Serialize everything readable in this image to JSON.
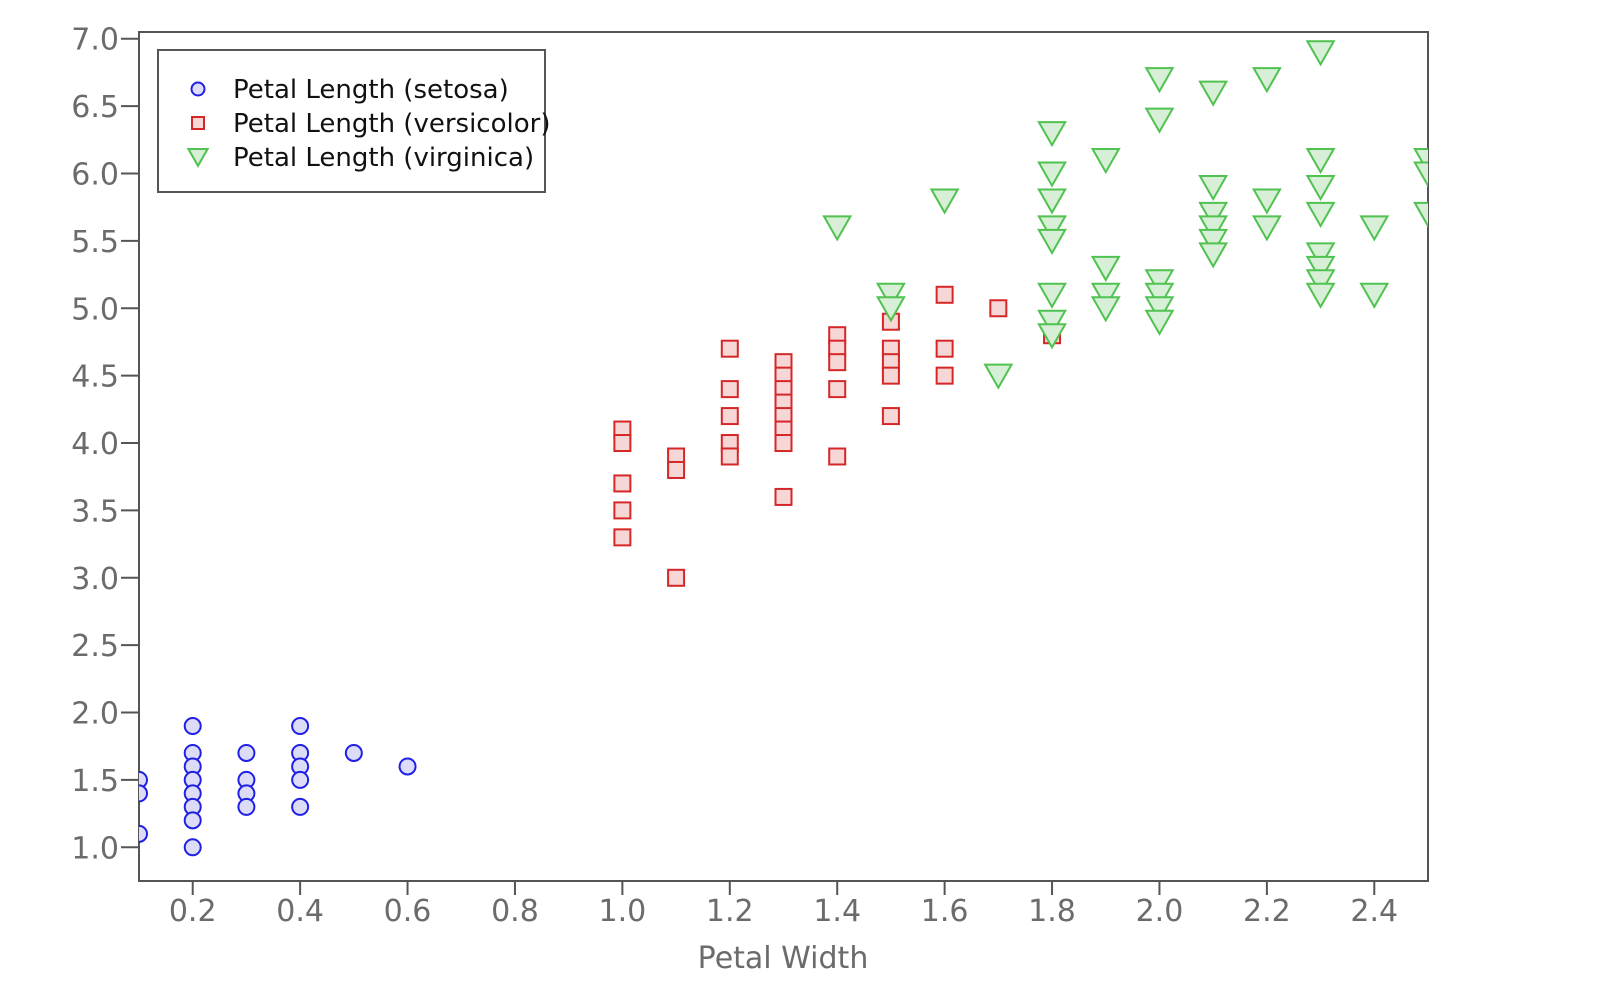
{
  "chart_data": {
    "type": "scatter",
    "title": "",
    "xlabel": "Petal Width",
    "ylabel": "",
    "xlim": [
      0.1,
      2.5
    ],
    "ylim": [
      0.75,
      7.05
    ],
    "xticks": [
      "0.2",
      "0.4",
      "0.6",
      "0.8",
      "1.0",
      "1.2",
      "1.4",
      "1.6",
      "1.8",
      "2.0",
      "2.2",
      "2.4"
    ],
    "yticks": [
      "1.0",
      "1.5",
      "2.0",
      "2.5",
      "3.0",
      "3.5",
      "4.0",
      "4.5",
      "5.0",
      "5.5",
      "6.0",
      "6.5",
      "7.0"
    ],
    "grid": false,
    "legend_position": "top-left",
    "series": [
      {
        "name": "Petal Length (setosa)",
        "marker": "circle",
        "stroke": "#1f1fe6",
        "fill": "#dcdcf7",
        "points": [
          [
            0.1,
            1.5
          ],
          [
            0.1,
            1.4
          ],
          [
            0.1,
            1.1
          ],
          [
            0.2,
            1.9
          ],
          [
            0.2,
            1.7
          ],
          [
            0.2,
            1.6
          ],
          [
            0.2,
            1.5
          ],
          [
            0.2,
            1.4
          ],
          [
            0.2,
            1.3
          ],
          [
            0.2,
            1.2
          ],
          [
            0.2,
            1.0
          ],
          [
            0.3,
            1.7
          ],
          [
            0.3,
            1.5
          ],
          [
            0.3,
            1.4
          ],
          [
            0.3,
            1.3
          ],
          [
            0.4,
            1.9
          ],
          [
            0.4,
            1.7
          ],
          [
            0.4,
            1.6
          ],
          [
            0.4,
            1.5
          ],
          [
            0.4,
            1.3
          ],
          [
            0.5,
            1.7
          ],
          [
            0.6,
            1.6
          ]
        ]
      },
      {
        "name": "Petal Length (versicolor)",
        "marker": "square",
        "stroke": "#d62728",
        "fill": "#f7d6d6",
        "points": [
          [
            1.0,
            4.1
          ],
          [
            1.0,
            4.0
          ],
          [
            1.0,
            3.7
          ],
          [
            1.0,
            3.5
          ],
          [
            1.0,
            3.3
          ],
          [
            1.1,
            3.9
          ],
          [
            1.1,
            3.8
          ],
          [
            1.1,
            3.0
          ],
          [
            1.2,
            4.7
          ],
          [
            1.2,
            4.4
          ],
          [
            1.2,
            4.2
          ],
          [
            1.2,
            4.0
          ],
          [
            1.2,
            3.9
          ],
          [
            1.3,
            4.6
          ],
          [
            1.3,
            4.5
          ],
          [
            1.3,
            4.4
          ],
          [
            1.3,
            4.3
          ],
          [
            1.3,
            4.2
          ],
          [
            1.3,
            4.1
          ],
          [
            1.3,
            4.0
          ],
          [
            1.3,
            3.6
          ],
          [
            1.4,
            4.8
          ],
          [
            1.4,
            4.7
          ],
          [
            1.4,
            4.6
          ],
          [
            1.4,
            4.4
          ],
          [
            1.4,
            3.9
          ],
          [
            1.5,
            4.9
          ],
          [
            1.5,
            4.7
          ],
          [
            1.5,
            4.6
          ],
          [
            1.5,
            4.5
          ],
          [
            1.5,
            4.2
          ],
          [
            1.6,
            5.1
          ],
          [
            1.6,
            4.7
          ],
          [
            1.6,
            4.5
          ],
          [
            1.7,
            5.0
          ],
          [
            1.8,
            4.8
          ]
        ]
      },
      {
        "name": "Petal Length (virginica)",
        "marker": "triangle-down",
        "stroke": "#4fc24f",
        "fill": "#d7efd7",
        "points": [
          [
            1.4,
            5.6
          ],
          [
            1.5,
            5.1
          ],
          [
            1.5,
            5.0
          ],
          [
            1.6,
            5.8
          ],
          [
            1.7,
            4.5
          ],
          [
            1.8,
            6.3
          ],
          [
            1.8,
            6.0
          ],
          [
            1.8,
            5.8
          ],
          [
            1.8,
            5.6
          ],
          [
            1.8,
            5.5
          ],
          [
            1.8,
            5.1
          ],
          [
            1.8,
            4.9
          ],
          [
            1.8,
            4.8
          ],
          [
            1.9,
            6.1
          ],
          [
            1.9,
            5.3
          ],
          [
            1.9,
            5.1
          ],
          [
            1.9,
            5.0
          ],
          [
            2.0,
            6.7
          ],
          [
            2.0,
            6.4
          ],
          [
            2.0,
            5.2
          ],
          [
            2.0,
            5.1
          ],
          [
            2.0,
            5.0
          ],
          [
            2.0,
            4.9
          ],
          [
            2.1,
            6.6
          ],
          [
            2.1,
            5.9
          ],
          [
            2.1,
            5.7
          ],
          [
            2.1,
            5.6
          ],
          [
            2.1,
            5.5
          ],
          [
            2.1,
            5.4
          ],
          [
            2.2,
            6.7
          ],
          [
            2.2,
            5.8
          ],
          [
            2.2,
            5.6
          ],
          [
            2.3,
            6.9
          ],
          [
            2.3,
            6.1
          ],
          [
            2.3,
            5.9
          ],
          [
            2.3,
            5.7
          ],
          [
            2.3,
            5.4
          ],
          [
            2.3,
            5.3
          ],
          [
            2.3,
            5.2
          ],
          [
            2.3,
            5.1
          ],
          [
            2.4,
            5.6
          ],
          [
            2.4,
            5.1
          ],
          [
            2.5,
            6.1
          ],
          [
            2.5,
            6.0
          ],
          [
            2.5,
            5.7
          ]
        ]
      }
    ]
  }
}
